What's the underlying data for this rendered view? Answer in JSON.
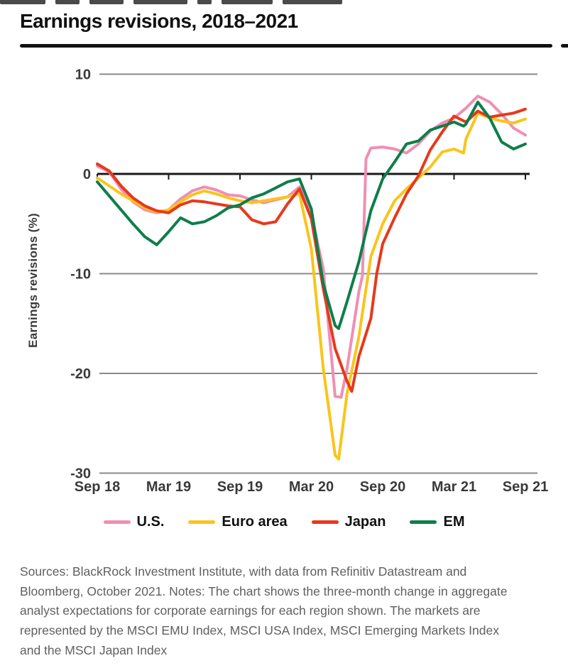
{
  "title": "Earnings revisions, 2018–2021",
  "footer": {
    "text": "Sources: BlackRock Investment Institute, with data from Refinitiv Datastream and Bloomberg, October 2021. Notes: The chart shows the three-month change in aggregate analyst expectations for corporate earnings for each region shown. The markets are represented by the MSCI EMU Index, MSCI USA Index, MSCI Emerging Markets Index and the MSCI Japan Index"
  },
  "colors": {
    "grid": "#8a8a8a",
    "zero_axis": "#1a1a1a",
    "tick_text": "#3a3a3a",
    "title_text": "#111111"
  },
  "chart_data": {
    "type": "line",
    "title": "Earnings revisions, 2018–2021",
    "xlabel": "",
    "ylabel": "Earnings revisions  (%)",
    "ylim": [
      -30,
      10
    ],
    "yticks": [
      10,
      0,
      -10,
      -20,
      -30
    ],
    "x_unit": "months since Sep 2018",
    "xlim": [
      0,
      36
    ],
    "xtick_positions": [
      0,
      6,
      12,
      18,
      24,
      30,
      36
    ],
    "xtick_labels": [
      "Sep 18",
      "Mar 19",
      "Sep 19",
      "Mar 20",
      "Sep 20",
      "Mar 21",
      "Sep 21"
    ],
    "grid": "horizontal-only",
    "legend_position": "bottom",
    "series": [
      {
        "name": "U.S.",
        "color": "#ef8fb4",
        "points": [
          [
            0,
            0.8
          ],
          [
            1,
            0.2
          ],
          [
            2,
            -1.5
          ],
          [
            3,
            -2.8
          ],
          [
            4,
            -3.6
          ],
          [
            5,
            -3.9
          ],
          [
            6,
            -3.6
          ],
          [
            7,
            -2.5
          ],
          [
            8,
            -1.7
          ],
          [
            9,
            -1.3
          ],
          [
            10,
            -1.6
          ],
          [
            11,
            -2.1
          ],
          [
            12,
            -2.2
          ],
          [
            13,
            -2.6
          ],
          [
            14,
            -2.9
          ],
          [
            15,
            -2.6
          ],
          [
            16,
            -2.3
          ],
          [
            17,
            -1.3
          ],
          [
            18,
            -4.0
          ],
          [
            19,
            -9.5
          ],
          [
            20,
            -22.3
          ],
          [
            20.5,
            -22.4
          ],
          [
            21,
            -19.5
          ],
          [
            22,
            -11.8
          ],
          [
            22.3,
            -10.2
          ],
          [
            22.6,
            1.5
          ],
          [
            23,
            2.6
          ],
          [
            24,
            2.7
          ],
          [
            25,
            2.5
          ],
          [
            26,
            2.1
          ],
          [
            27,
            3.0
          ],
          [
            28,
            4.3
          ],
          [
            29,
            5.1
          ],
          [
            30,
            5.6
          ],
          [
            31,
            6.6
          ],
          [
            32,
            7.8
          ],
          [
            33,
            7.2
          ],
          [
            34,
            6.0
          ],
          [
            35,
            4.6
          ],
          [
            36,
            3.9
          ]
        ]
      },
      {
        "name": "Euro area",
        "color": "#f9c51b",
        "points": [
          [
            0,
            -0.4
          ],
          [
            1,
            -1.2
          ],
          [
            2,
            -2.0
          ],
          [
            3,
            -2.7
          ],
          [
            4,
            -3.4
          ],
          [
            5,
            -3.8
          ],
          [
            6,
            -3.6
          ],
          [
            7,
            -2.8
          ],
          [
            8,
            -2.1
          ],
          [
            9,
            -1.7
          ],
          [
            10,
            -2.0
          ],
          [
            11,
            -2.4
          ],
          [
            12,
            -2.7
          ],
          [
            13,
            -2.9
          ],
          [
            14,
            -2.7
          ],
          [
            15,
            -2.5
          ],
          [
            16,
            -2.3
          ],
          [
            17,
            -2.0
          ],
          [
            18,
            -7.5
          ],
          [
            19,
            -19.5
          ],
          [
            20,
            -28.2
          ],
          [
            20.3,
            -28.6
          ],
          [
            21,
            -22.0
          ],
          [
            22,
            -16.3
          ],
          [
            23,
            -8.3
          ],
          [
            24,
            -5.0
          ],
          [
            25,
            -2.7
          ],
          [
            26,
            -1.5
          ],
          [
            27,
            -0.4
          ],
          [
            28,
            0.7
          ],
          [
            29,
            2.2
          ],
          [
            30,
            2.5
          ],
          [
            30.8,
            2.1
          ],
          [
            31,
            3.5
          ],
          [
            32,
            6.1
          ],
          [
            33,
            5.6
          ],
          [
            34,
            5.3
          ],
          [
            35,
            5.1
          ],
          [
            36,
            5.5
          ]
        ]
      },
      {
        "name": "Japan",
        "color": "#e6391b",
        "points": [
          [
            0,
            1.0
          ],
          [
            1,
            0.3
          ],
          [
            2,
            -1.2
          ],
          [
            3,
            -2.4
          ],
          [
            4,
            -3.2
          ],
          [
            5,
            -3.7
          ],
          [
            6,
            -3.9
          ],
          [
            7,
            -3.1
          ],
          [
            8,
            -2.7
          ],
          [
            9,
            -2.8
          ],
          [
            10,
            -3.0
          ],
          [
            11,
            -3.2
          ],
          [
            12,
            -3.3
          ],
          [
            13,
            -4.6
          ],
          [
            14,
            -5.0
          ],
          [
            15,
            -4.8
          ],
          [
            16,
            -3.0
          ],
          [
            17,
            -1.5
          ],
          [
            18,
            -4.5
          ],
          [
            19,
            -11.5
          ],
          [
            20,
            -17.5
          ],
          [
            21,
            -20.8
          ],
          [
            21.4,
            -21.8
          ],
          [
            22,
            -18.3
          ],
          [
            23,
            -14.5
          ],
          [
            23.5,
            -10.0
          ],
          [
            24,
            -7.0
          ],
          [
            25,
            -4.4
          ],
          [
            26,
            -2.0
          ],
          [
            27,
            -0.2
          ],
          [
            28,
            2.4
          ],
          [
            29,
            4.2
          ],
          [
            30,
            5.8
          ],
          [
            31,
            5.2
          ],
          [
            32,
            6.3
          ],
          [
            33,
            5.7
          ],
          [
            34,
            5.9
          ],
          [
            35,
            6.1
          ],
          [
            36,
            6.5
          ]
        ]
      },
      {
        "name": "EM",
        "color": "#0d7e4a",
        "points": [
          [
            0,
            -0.8
          ],
          [
            1,
            -2.2
          ],
          [
            2,
            -3.6
          ],
          [
            3,
            -5.0
          ],
          [
            4,
            -6.3
          ],
          [
            5,
            -7.1
          ],
          [
            6,
            -5.8
          ],
          [
            7,
            -4.4
          ],
          [
            8,
            -5.0
          ],
          [
            9,
            -4.8
          ],
          [
            10,
            -4.2
          ],
          [
            11,
            -3.4
          ],
          [
            12,
            -3.1
          ],
          [
            13,
            -2.4
          ],
          [
            14,
            -2.0
          ],
          [
            15,
            -1.4
          ],
          [
            16,
            -0.8
          ],
          [
            17,
            -0.5
          ],
          [
            18,
            -3.5
          ],
          [
            19,
            -11.0
          ],
          [
            20,
            -15.2
          ],
          [
            20.3,
            -15.5
          ],
          [
            21,
            -12.8
          ],
          [
            22,
            -8.8
          ],
          [
            23,
            -3.7
          ],
          [
            24,
            -0.5
          ],
          [
            25,
            1.2
          ],
          [
            26,
            3.0
          ],
          [
            27,
            3.3
          ],
          [
            28,
            4.4
          ],
          [
            29,
            4.8
          ],
          [
            30,
            5.2
          ],
          [
            30.8,
            4.8
          ],
          [
            31,
            5.0
          ],
          [
            32,
            7.2
          ],
          [
            33,
            5.6
          ],
          [
            34,
            3.2
          ],
          [
            35,
            2.5
          ],
          [
            36,
            3.0
          ]
        ]
      }
    ]
  }
}
